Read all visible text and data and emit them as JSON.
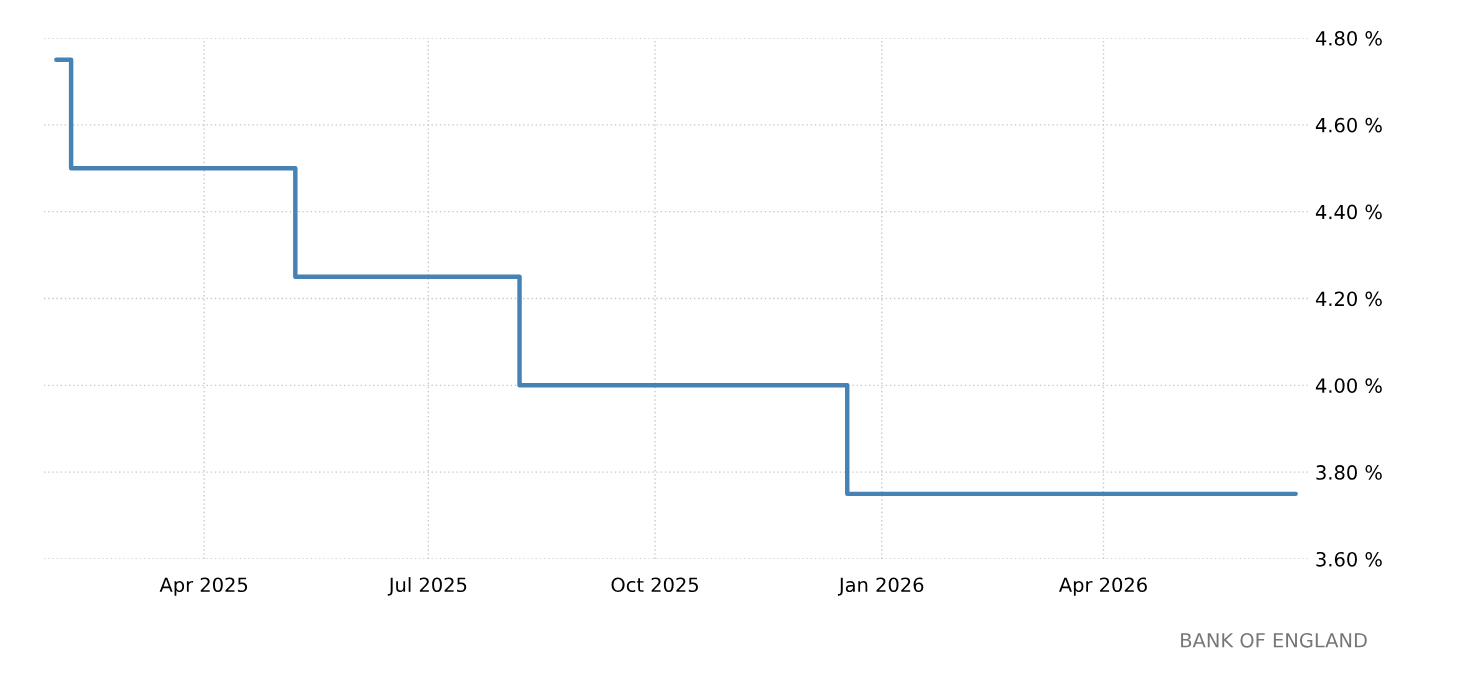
{
  "chart_data": {
    "type": "step",
    "x": [
      "2025-01-31",
      "2025-02-06",
      "2025-05-08",
      "2025-08-07",
      "2025-12-18",
      "2026-06-18"
    ],
    "series": [
      {
        "color": "#4682b4",
        "values": [
          4.75,
          4.5,
          4.25,
          4.0,
          3.75,
          3.75
        ]
      }
    ],
    "xlim": [
      "2025-01-26",
      "2026-06-23"
    ],
    "xticks": [
      {
        "value": "2025-04-01",
        "label": "Apr 2025"
      },
      {
        "value": "2025-07-01",
        "label": "Jul 2025"
      },
      {
        "value": "2025-10-01",
        "label": "Oct 2025"
      },
      {
        "value": "2026-01-01",
        "label": "Jan 2026"
      },
      {
        "value": "2026-04-01",
        "label": "Apr 2026"
      }
    ],
    "ylim": [
      3.6,
      4.8
    ],
    "yticks": [
      {
        "value": 3.6,
        "label": "3.60 %"
      },
      {
        "value": 3.8,
        "label": "3.80 %"
      },
      {
        "value": 4.0,
        "label": "4.00 %"
      },
      {
        "value": 4.2,
        "label": "4.20 %"
      },
      {
        "value": 4.4,
        "label": "4.40 %"
      },
      {
        "value": 4.6,
        "label": "4.60 %"
      },
      {
        "value": 4.8,
        "label": "4.80 %"
      }
    ],
    "grid": true,
    "line_style": "solid",
    "annotations": [
      "BANK OF ENGLAND"
    ]
  }
}
